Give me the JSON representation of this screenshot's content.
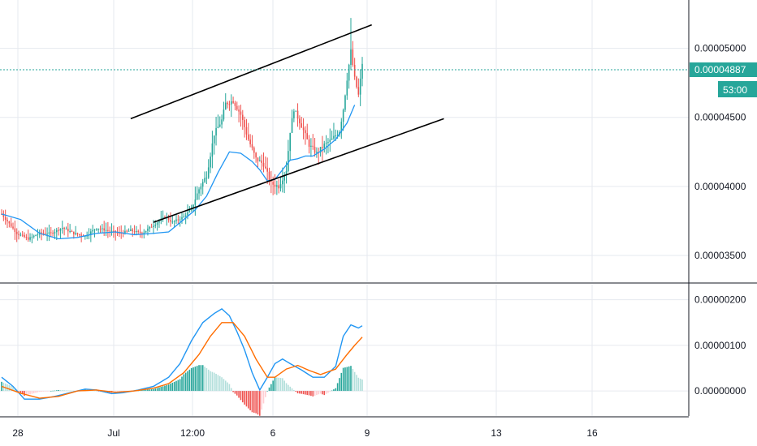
{
  "chart_data": [
    {
      "type": "candlestick",
      "pane": "price",
      "title": "",
      "xlabel": "",
      "ylabel": "",
      "x_ticks": [
        "28",
        "Jul",
        "12:00",
        "6",
        "9",
        "13",
        "16"
      ],
      "y_ticks": [
        "0.00003500",
        "0.00004000",
        "0.00004500",
        "0.00005000"
      ],
      "ylim": [
        3.3e-05,
        5.35e-05
      ],
      "grid": true,
      "colors": {
        "up": "#26a69a",
        "down": "#ef5350",
        "ma": "#2196f3",
        "trendline": "#000000",
        "price_line": "#26a69a"
      },
      "last_price": "0.00004887",
      "countdown": "53:00",
      "moving_average": [
        {
          "t": 0,
          "v": 3.8e-05
        },
        {
          "t": 10,
          "v": 3.76e-05
        },
        {
          "t": 20,
          "v": 3.66e-05
        },
        {
          "t": 30,
          "v": 3.62e-05
        },
        {
          "t": 40,
          "v": 3.63e-05
        },
        {
          "t": 50,
          "v": 3.66e-05
        },
        {
          "t": 60,
          "v": 3.67e-05
        },
        {
          "t": 70,
          "v": 3.65e-05
        },
        {
          "t": 80,
          "v": 3.66e-05
        },
        {
          "t": 88,
          "v": 3.67e-05
        },
        {
          "t": 96,
          "v": 3.76e-05
        },
        {
          "t": 102,
          "v": 3.83e-05
        },
        {
          "t": 108,
          "v": 3.93e-05
        },
        {
          "t": 114,
          "v": 4.1e-05
        },
        {
          "t": 120,
          "v": 4.25e-05
        },
        {
          "t": 126,
          "v": 4.24e-05
        },
        {
          "t": 132,
          "v": 4.18e-05
        },
        {
          "t": 136,
          "v": 4.12e-05
        },
        {
          "t": 140,
          "v": 4.04e-05
        },
        {
          "t": 144,
          "v": 4.05e-05
        },
        {
          "t": 148,
          "v": 4.12e-05
        },
        {
          "t": 152,
          "v": 4.19e-05
        },
        {
          "t": 156,
          "v": 4.2e-05
        },
        {
          "t": 160,
          "v": 4.22e-05
        },
        {
          "t": 164,
          "v": 4.22e-05
        },
        {
          "t": 170,
          "v": 4.27e-05
        },
        {
          "t": 176,
          "v": 4.34e-05
        },
        {
          "t": 182,
          "v": 4.46e-05
        },
        {
          "t": 186,
          "v": 4.59e-05
        }
      ],
      "trendlines": [
        {
          "t1": 68,
          "v1": 4.49e-05,
          "t2": 195,
          "v2": 5.17e-05
        },
        {
          "t1": 80,
          "v1": 3.74e-05,
          "t2": 233,
          "v2": 4.49e-05
        }
      ],
      "candles": []
    },
    {
      "type": "macd",
      "pane": "indicator",
      "x_ticks": [
        "28",
        "Jul",
        "12:00",
        "6",
        "9",
        "13",
        "16"
      ],
      "y_ticks": [
        "0.00000000",
        "0.00000100",
        "0.00000200"
      ],
      "ylim": [
        -5.5e-07,
        2.35e-06
      ],
      "colors": {
        "macd": "#2196f3",
        "signal": "#ff6d00",
        "hist_up_strong": "#26a69a",
        "hist_up_weak": "#b2dfdb",
        "hist_down_strong": "#ef5350",
        "hist_down_weak": "#ffcdd2"
      },
      "macd_line": [],
      "signal_line": [],
      "histogram": []
    }
  ]
}
